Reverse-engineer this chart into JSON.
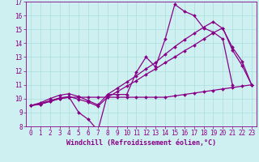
{
  "color": "#880088",
  "bg_color": "#cff0f0",
  "grid_color": "#aadddd",
  "ylim": [
    8.0,
    17.0
  ],
  "xlim": [
    -0.5,
    23.5
  ],
  "yticks": [
    8,
    9,
    10,
    11,
    12,
    13,
    14,
    15,
    16,
    17
  ],
  "xticks": [
    0,
    1,
    2,
    3,
    4,
    5,
    6,
    7,
    8,
    9,
    10,
    11,
    12,
    13,
    14,
    15,
    16,
    17,
    18,
    19,
    20,
    21,
    22,
    23
  ],
  "xlabel": "Windchill (Refroidissement éolien,°C)",
  "xlabel_fontsize": 6,
  "tick_fontsize": 5.5,
  "marker": "D",
  "marker_size": 2.0,
  "line_width": 0.9,
  "line_jagged": [
    9.5,
    9.6,
    9.8,
    10.0,
    10.1,
    9.0,
    8.5,
    7.7,
    10.3,
    10.3,
    10.3,
    11.9,
    13.0,
    12.3,
    14.3,
    16.8,
    16.3,
    16.0,
    15.1,
    14.8,
    14.3,
    11.0,
    null,
    null
  ],
  "line_flat": [
    9.5,
    9.6,
    9.8,
    10.0,
    10.1,
    10.1,
    10.1,
    10.1,
    10.1,
    10.1,
    10.1,
    10.1,
    10.1,
    10.1,
    10.1,
    10.2,
    10.3,
    10.4,
    10.5,
    10.6,
    10.7,
    10.8,
    10.9,
    11.0
  ],
  "line_trend1": [
    9.5,
    9.65,
    9.85,
    10.05,
    10.15,
    9.95,
    9.75,
    9.45,
    10.1,
    10.5,
    10.9,
    11.3,
    11.75,
    12.15,
    12.6,
    13.0,
    13.45,
    13.85,
    14.3,
    14.75,
    15.1,
    13.5,
    12.4,
    11.0
  ],
  "line_trend2": [
    9.5,
    9.7,
    10.0,
    10.25,
    10.35,
    10.15,
    9.85,
    9.55,
    10.3,
    10.75,
    11.2,
    11.65,
    12.15,
    12.6,
    13.2,
    13.75,
    14.25,
    14.7,
    15.15,
    15.55,
    15.05,
    13.7,
    12.7,
    11.0
  ]
}
